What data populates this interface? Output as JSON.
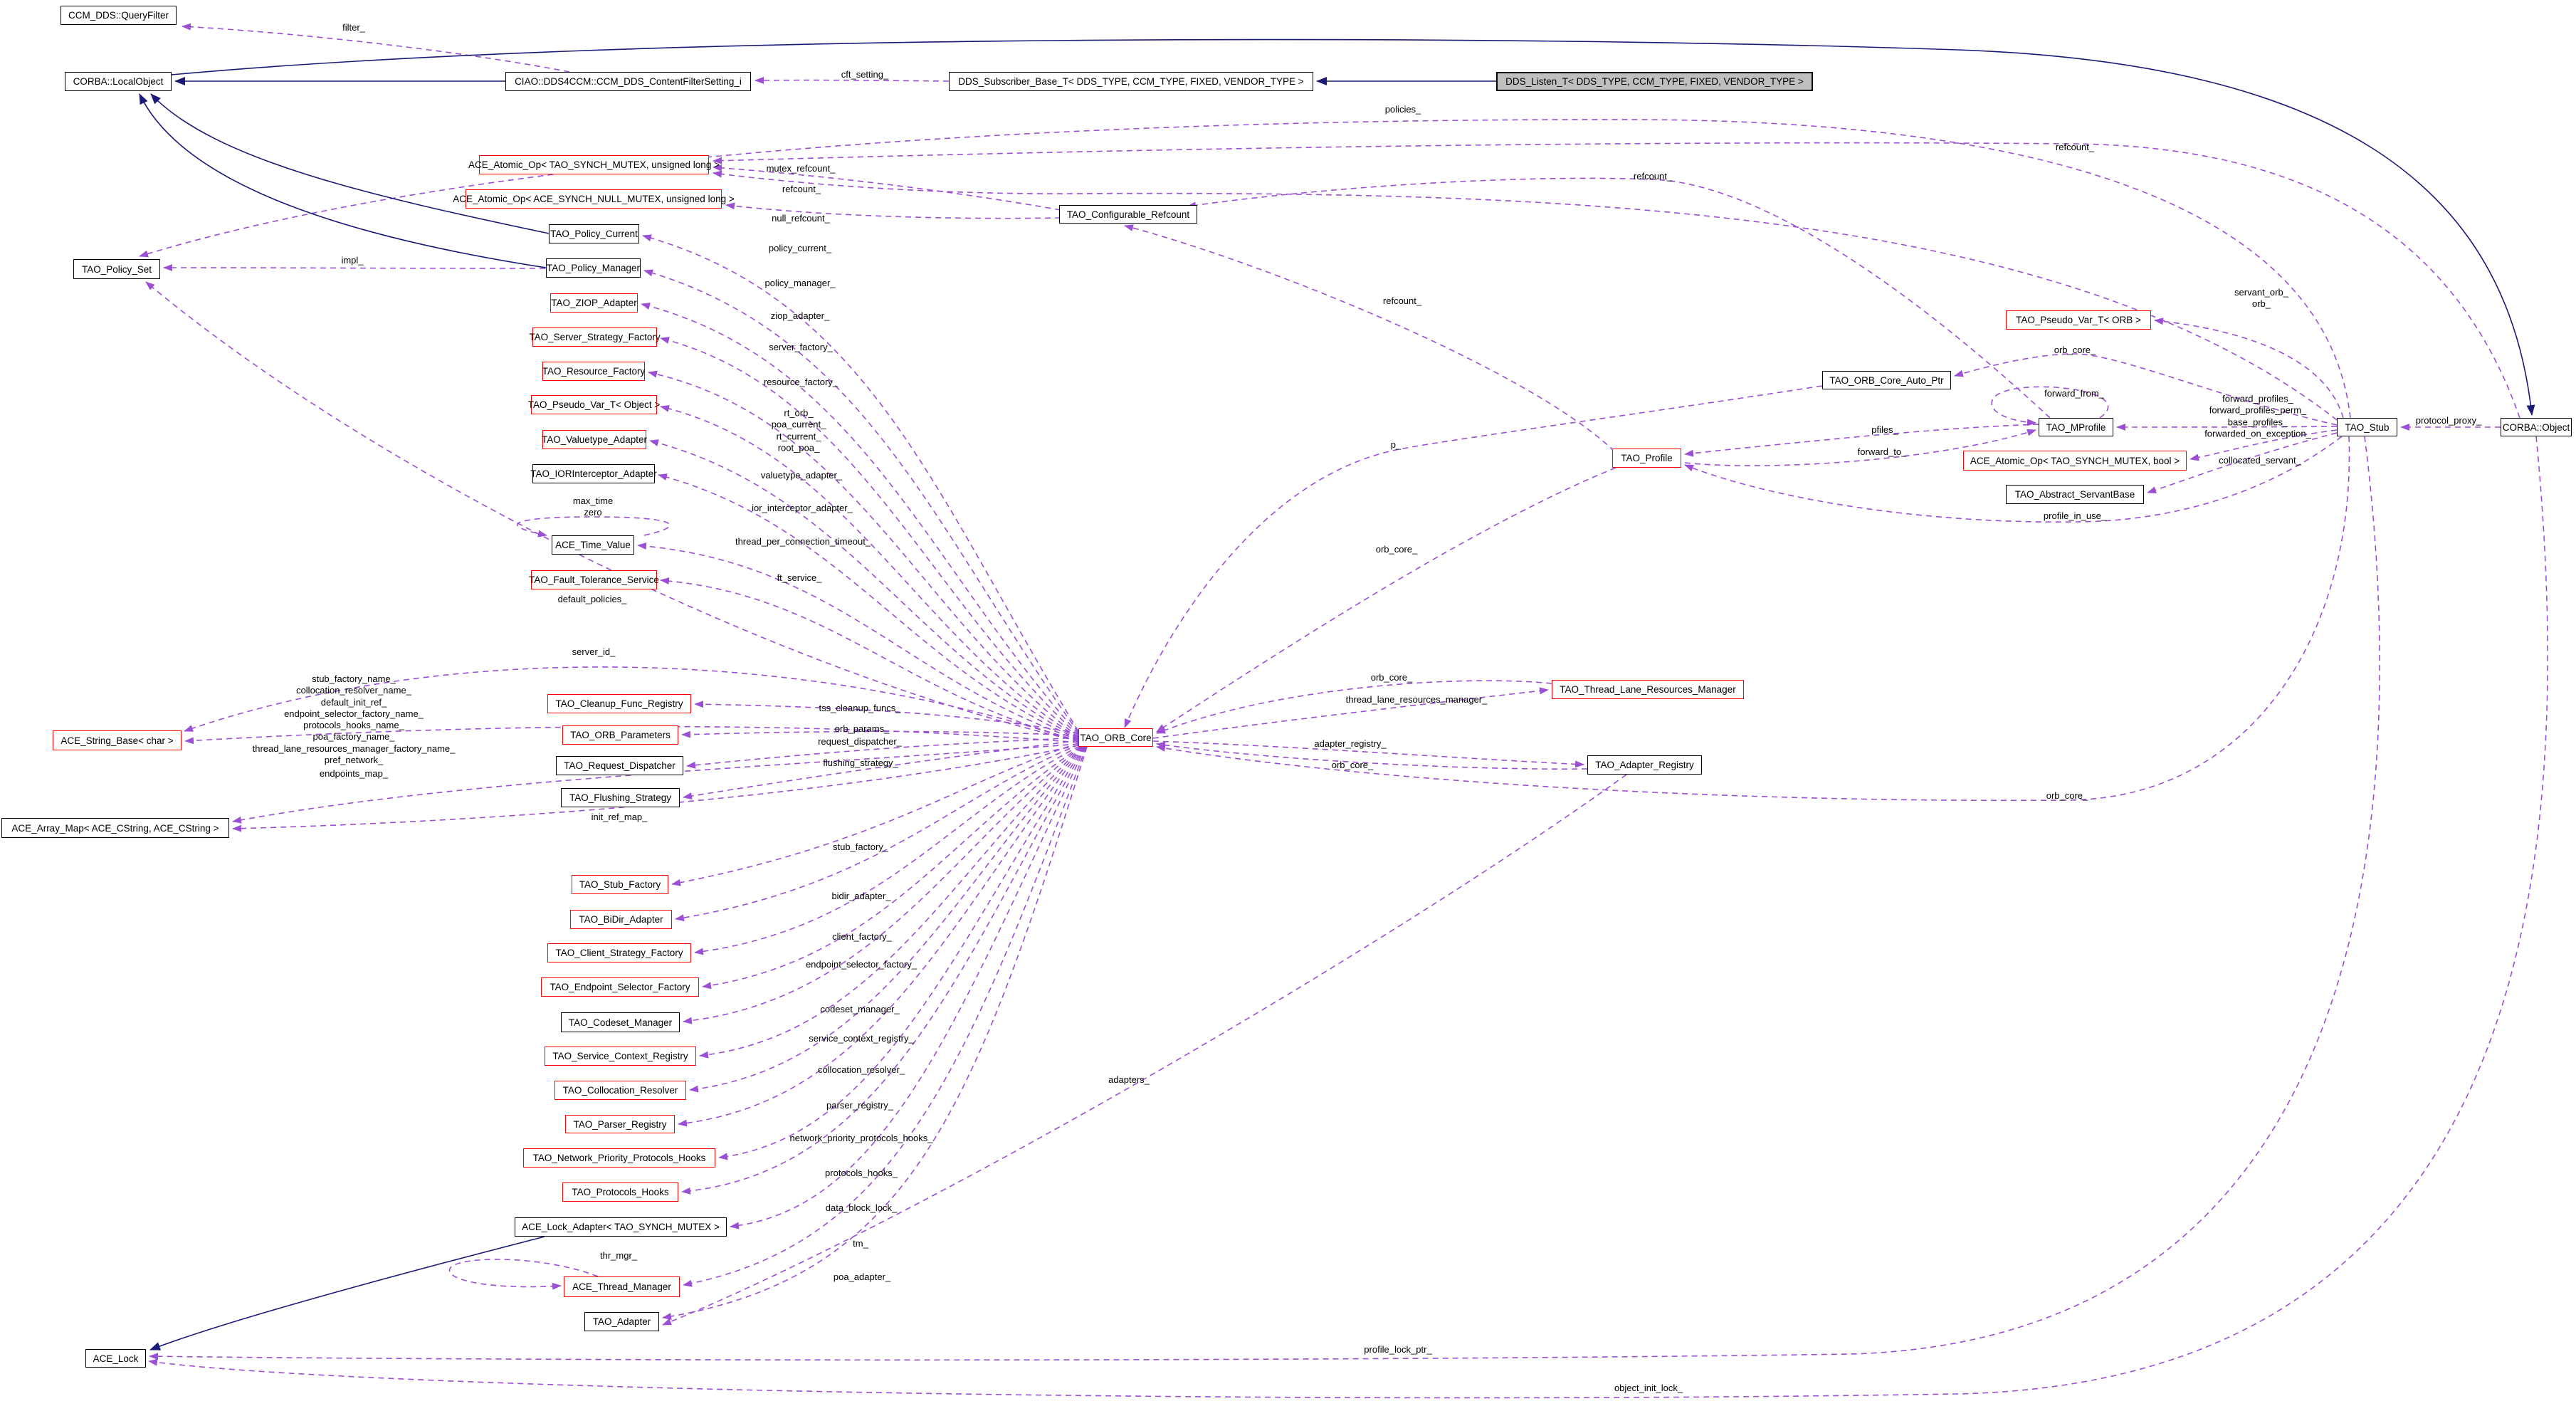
{
  "diagram": {
    "type": "uml-collaboration-graph",
    "colors": {
      "usage_edge": "#9a4fd4",
      "inheritance_edge": "#1b1b77",
      "red_node_border": "#ff0000",
      "plain_node_border": "#000000",
      "current_node_fill": "#bfbfbf"
    },
    "nodes": [
      {
        "id": "query_filter",
        "label": "CCM_DDS::QueryFilter",
        "variant": "plain"
      },
      {
        "id": "local_object",
        "label": "CORBA::LocalObject",
        "variant": "plain"
      },
      {
        "id": "content_filter",
        "label": "CIAO::DDS4CCM::CCM_DDS_ContentFilterSetting_i",
        "variant": "plain"
      },
      {
        "id": "dds_subscriber",
        "label": "DDS_Subscriber_Base_T< DDS_TYPE, CCM_TYPE, FIXED, VENDOR_TYPE >",
        "variant": "plain"
      },
      {
        "id": "dds_listen",
        "label": "DDS_Listen_T< DDS_TYPE, CCM_TYPE, FIXED, VENDOR_TYPE >",
        "variant": "current"
      },
      {
        "id": "atomic_mutex_ulong",
        "label": "ACE_Atomic_Op< TAO_SYNCH_MUTEX, unsigned long >",
        "variant": "red"
      },
      {
        "id": "atomic_null_ulong",
        "label": "ACE_Atomic_Op< ACE_SYNCH_NULL_MUTEX, unsigned long >",
        "variant": "red"
      },
      {
        "id": "policy_current",
        "label": "TAO_Policy_Current",
        "variant": "plain"
      },
      {
        "id": "policy_manager",
        "label": "TAO_Policy_Manager",
        "variant": "plain"
      },
      {
        "id": "policy_set",
        "label": "TAO_Policy_Set",
        "variant": "plain"
      },
      {
        "id": "ziop_adapter",
        "label": "TAO_ZIOP_Adapter",
        "variant": "red"
      },
      {
        "id": "server_strategy",
        "label": "TAO_Server_Strategy_Factory",
        "variant": "red"
      },
      {
        "id": "resource_factory",
        "label": "TAO_Resource_Factory",
        "variant": "red"
      },
      {
        "id": "pseudo_var_object",
        "label": "TAO_Pseudo_Var_T< Object >",
        "variant": "red"
      },
      {
        "id": "valuetype_adapter",
        "label": "TAO_Valuetype_Adapter",
        "variant": "red"
      },
      {
        "id": "ior_interceptor",
        "label": "TAO_IORInterceptor_Adapter",
        "variant": "plain"
      },
      {
        "id": "ace_time_value",
        "label": "ACE_Time_Value",
        "variant": "plain"
      },
      {
        "id": "fault_tolerance",
        "label": "TAO_Fault_Tolerance_Service",
        "variant": "red"
      },
      {
        "id": "ace_string_base",
        "label": "ACE_String_Base< char >",
        "variant": "red"
      },
      {
        "id": "ace_array_map",
        "label": "ACE_Array_Map< ACE_CString, ACE_CString >",
        "variant": "plain"
      },
      {
        "id": "cleanup_func",
        "label": "TAO_Cleanup_Func_Registry",
        "variant": "red"
      },
      {
        "id": "orb_parameters",
        "label": "TAO_ORB_Parameters",
        "variant": "red"
      },
      {
        "id": "request_dispatcher",
        "label": "TAO_Request_Dispatcher",
        "variant": "plain"
      },
      {
        "id": "flushing_strategy",
        "label": "TAO_Flushing_Strategy",
        "variant": "plain"
      },
      {
        "id": "stub_factory",
        "label": "TAO_Stub_Factory",
        "variant": "red"
      },
      {
        "id": "bidir_adapter",
        "label": "TAO_BiDir_Adapter",
        "variant": "red"
      },
      {
        "id": "client_strategy",
        "label": "TAO_Client_Strategy_Factory",
        "variant": "red"
      },
      {
        "id": "endpoint_selector",
        "label": "TAO_Endpoint_Selector_Factory",
        "variant": "red"
      },
      {
        "id": "codeset_manager",
        "label": "TAO_Codeset_Manager",
        "variant": "plain"
      },
      {
        "id": "service_context",
        "label": "TAO_Service_Context_Registry",
        "variant": "red"
      },
      {
        "id": "collocation_resolver",
        "label": "TAO_Collocation_Resolver",
        "variant": "red"
      },
      {
        "id": "parser_registry",
        "label": "TAO_Parser_Registry",
        "variant": "red"
      },
      {
        "id": "network_priority",
        "label": "TAO_Network_Priority_Protocols_Hooks",
        "variant": "red"
      },
      {
        "id": "protocols_hooks",
        "label": "TAO_Protocols_Hooks",
        "variant": "red"
      },
      {
        "id": "lock_adapter",
        "label": "ACE_Lock_Adapter< TAO_SYNCH_MUTEX >",
        "variant": "plain"
      },
      {
        "id": "thread_manager",
        "label": "ACE_Thread_Manager",
        "variant": "red"
      },
      {
        "id": "tao_adapter",
        "label": "TAO_Adapter",
        "variant": "plain"
      },
      {
        "id": "ace_lock",
        "label": "ACE_Lock",
        "variant": "plain"
      },
      {
        "id": "orb_core",
        "label": "TAO_ORB_Core",
        "variant": "red"
      },
      {
        "id": "configurable_refcount",
        "label": "TAO_Configurable_Refcount",
        "variant": "plain"
      },
      {
        "id": "tlrm",
        "label": "TAO_Thread_Lane_Resources_Manager",
        "variant": "red"
      },
      {
        "id": "adapter_registry",
        "label": "TAO_Adapter_Registry",
        "variant": "plain"
      },
      {
        "id": "tao_profile",
        "label": "TAO_Profile",
        "variant": "red"
      },
      {
        "id": "orb_core_auto_ptr",
        "label": "TAO_ORB_Core_Auto_Ptr",
        "variant": "plain"
      },
      {
        "id": "pseudo_var_orb",
        "label": "TAO_Pseudo_Var_T< ORB >",
        "variant": "red"
      },
      {
        "id": "mprofile",
        "label": "TAO_MProfile",
        "variant": "plain"
      },
      {
        "id": "atomic_bool",
        "label": "ACE_Atomic_Op< TAO_SYNCH_MUTEX, bool >",
        "variant": "red"
      },
      {
        "id": "abstract_servant",
        "label": "TAO_Abstract_ServantBase",
        "variant": "plain"
      },
      {
        "id": "tao_stub",
        "label": "TAO_Stub",
        "variant": "plain"
      },
      {
        "id": "corba_object",
        "label": "CORBA::Object",
        "variant": "plain"
      }
    ],
    "edge_labels": [
      {
        "id": "filter",
        "text": "filter_"
      },
      {
        "id": "cft_setting",
        "text": "cft_setting_"
      },
      {
        "id": "policies",
        "text": "policies_"
      },
      {
        "id": "refcount_obj",
        "text": "refcount_"
      },
      {
        "id": "refcount_mpr",
        "text": "refcount_"
      },
      {
        "id": "mutex_refcount",
        "text": "mutex_refcount_"
      },
      {
        "id": "refcount_stub",
        "text": "refcount_"
      },
      {
        "id": "null_refcount",
        "text": "null_refcount_"
      },
      {
        "id": "policy_current",
        "text": "policy_current_"
      },
      {
        "id": "impl",
        "text": "impl_"
      },
      {
        "id": "policy_manager",
        "text": "policy_manager_"
      },
      {
        "id": "refcount_prof",
        "text": "refcount_"
      },
      {
        "id": "ziop_adapter",
        "text": "ziop_adapter_"
      },
      {
        "id": "server_factory",
        "text": "server_factory_"
      },
      {
        "id": "servant_orb",
        "text": "servant_orb_\norb_"
      },
      {
        "id": "orb_core_ap",
        "text": "orb_core_"
      },
      {
        "id": "resource_factory",
        "text": "resource_factory_"
      },
      {
        "id": "rt_stack",
        "text": "rt_orb_\npoa_current_\nrt_current_\nroot_poa_"
      },
      {
        "id": "forward_from",
        "text": "forward_from_"
      },
      {
        "id": "fwd_stack",
        "text": "forward_profiles_\nforward_profiles_perm_\nbase_profiles_\nforwarded_on_exception_"
      },
      {
        "id": "protocol_proxy",
        "text": "protocol_proxy_"
      },
      {
        "id": "p",
        "text": "p_"
      },
      {
        "id": "pfiles",
        "text": "pfiles_"
      },
      {
        "id": "forward_to",
        "text": "forward_to_"
      },
      {
        "id": "collocated_servant",
        "text": "collocated_servant_"
      },
      {
        "id": "valuetype_adapter",
        "text": "valuetype_adapter_"
      },
      {
        "id": "max_time_zero",
        "text": "max_time\nzero"
      },
      {
        "id": "ior_interceptor_adapter",
        "text": "ior_interceptor_adapter_"
      },
      {
        "id": "profile_in_use",
        "text": "profile_in_use_"
      },
      {
        "id": "thread_per_connection_timeout",
        "text": "thread_per_connection_timeout_"
      },
      {
        "id": "orb_core_prof",
        "text": "orb_core_"
      },
      {
        "id": "ft_service",
        "text": "ft_service_"
      },
      {
        "id": "default_policies",
        "text": "default_policies_"
      },
      {
        "id": "server_id",
        "text": "server_id_"
      },
      {
        "id": "orb_core_tlrm",
        "text": "orb_core_"
      },
      {
        "id": "name_stack",
        "text": "stub_factory_name_\ncollocation_resolver_name_\ndefault_init_ref_\nendpoint_selector_factory_name_\nprotocols_hooks_name_\npoa_factory_name_\nthread_lane_resources_manager_factory_name_\npref_network_"
      },
      {
        "id": "thread_lane_resources_manager",
        "text": "thread_lane_resources_manager_"
      },
      {
        "id": "tss_cleanup_funcs",
        "text": "tss_cleanup_funcs_"
      },
      {
        "id": "orb_params",
        "text": "orb_params_"
      },
      {
        "id": "adapter_registry",
        "text": "adapter_registry_"
      },
      {
        "id": "request_dispatcher",
        "text": "request_dispatcher_"
      },
      {
        "id": "flushing_strategy",
        "text": "flushing_strategy_"
      },
      {
        "id": "orb_core_adreg",
        "text": "orb_core_"
      },
      {
        "id": "endpoints_map",
        "text": "endpoints_map_"
      },
      {
        "id": "orb_core_stub",
        "text": "orb_core_"
      },
      {
        "id": "init_ref_map",
        "text": "init_ref_map_"
      },
      {
        "id": "stub_factory",
        "text": "stub_factory_"
      },
      {
        "id": "bidir_adapter",
        "text": "bidir_adapter_"
      },
      {
        "id": "client_factory",
        "text": "client_factory_"
      },
      {
        "id": "endpoint_selector_factory",
        "text": "endpoint_selector_factory_"
      },
      {
        "id": "codeset_manager",
        "text": "codeset_manager_"
      },
      {
        "id": "service_context_registry",
        "text": "service_context_registry_"
      },
      {
        "id": "collocation_resolver",
        "text": "collocation_resolver_"
      },
      {
        "id": "adapters",
        "text": "adapters_"
      },
      {
        "id": "parser_registry",
        "text": "parser_registry_"
      },
      {
        "id": "network_priority_protocols_hooks",
        "text": "network_priority_protocols_hooks_"
      },
      {
        "id": "protocols_hooks",
        "text": "protocols_hooks_"
      },
      {
        "id": "data_block_lock",
        "text": "data_block_lock_"
      },
      {
        "id": "tm",
        "text": "tm_"
      },
      {
        "id": "thr_mgr",
        "text": "thr_mgr_"
      },
      {
        "id": "poa_adapter",
        "text": "poa_adapter_"
      },
      {
        "id": "profile_lock_ptr",
        "text": "profile_lock_ptr_"
      },
      {
        "id": "object_init_lock",
        "text": "object_init_lock_"
      }
    ]
  }
}
